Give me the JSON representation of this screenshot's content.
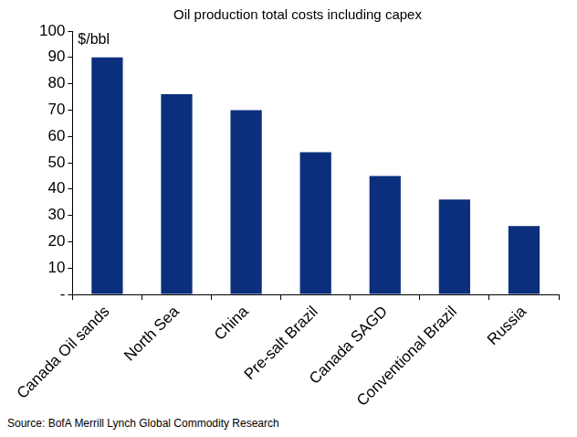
{
  "chart_data": {
    "type": "bar",
    "title": "Oil production total costs including capex",
    "annotations": [
      "$/bbl"
    ],
    "source": "Source: BofA Merrill Lynch Global Commodity Research",
    "categories": [
      "Canada Oil sands",
      "North Sea",
      "China",
      "Pre-salt Brazil",
      "Canada SAGD",
      "Conventional Brazil",
      "Russia"
    ],
    "values": [
      90,
      76,
      70,
      54,
      45,
      36,
      26
    ],
    "color": "#0b2f7d",
    "ylim": [
      0,
      100
    ],
    "yticks": [
      {
        "value": 0,
        "label": "-"
      },
      10,
      20,
      30,
      40,
      50,
      60,
      70,
      80,
      90,
      100
    ],
    "grid": false
  }
}
